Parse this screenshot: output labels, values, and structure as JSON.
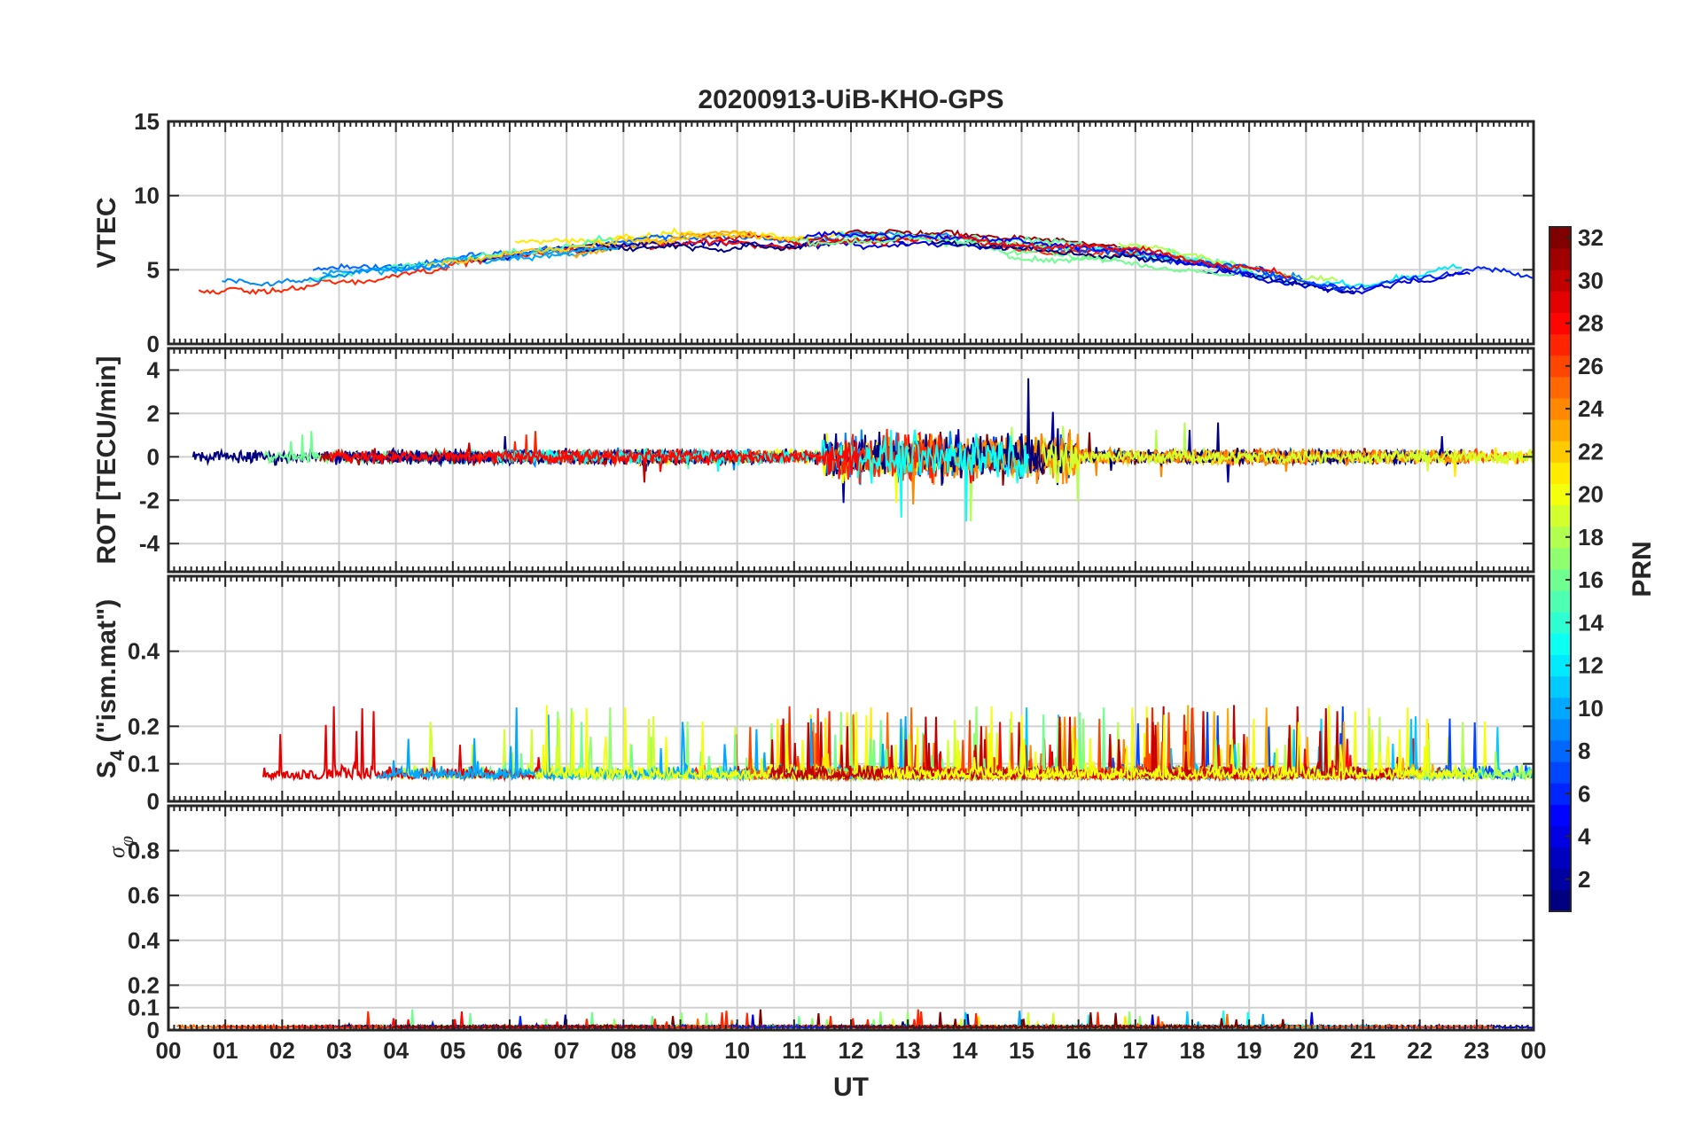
{
  "chart_data": {
    "type": "line",
    "title": "20200913-UiB-KHO-GPS",
    "xlabel": "UT",
    "x_ticks": [
      "00",
      "01",
      "02",
      "03",
      "04",
      "05",
      "06",
      "07",
      "08",
      "09",
      "10",
      "11",
      "12",
      "13",
      "14",
      "15",
      "16",
      "17",
      "18",
      "19",
      "20",
      "21",
      "22",
      "23",
      "00"
    ],
    "xlim": [
      0,
      24
    ],
    "panels": [
      {
        "id": "vtec",
        "ylabel": "VTEC",
        "ylim": [
          0,
          15
        ],
        "yticks": [
          0,
          5,
          10,
          15
        ],
        "ytick_labels": [
          "0",
          "5",
          "10",
          "15"
        ],
        "trend": {
          "hours": [
            0,
            1,
            2,
            3,
            4,
            5,
            6,
            7,
            8,
            9,
            10,
            11,
            12,
            13,
            14,
            15,
            16,
            17,
            18,
            19,
            20,
            21,
            22,
            23,
            24
          ],
          "values": [
            4.2,
            4.0,
            4.0,
            4.6,
            5.0,
            5.6,
            6.0,
            6.4,
            6.8,
            7.0,
            7.2,
            7.0,
            7.2,
            7.2,
            7.0,
            6.6,
            6.4,
            6.2,
            5.6,
            5.0,
            4.2,
            3.8,
            4.6,
            5.0,
            4.6
          ]
        }
      },
      {
        "id": "rot",
        "ylabel": "ROT [TECU/min]",
        "ylim": [
          -5.3,
          5.0
        ],
        "yticks": [
          -4,
          -2,
          0,
          2,
          4
        ],
        "ytick_labels": [
          "-4",
          "-2",
          "0",
          "2",
          "4"
        ]
      },
      {
        "id": "s4",
        "ylabel_main": "S",
        "ylabel_sub": "4",
        "ylabel_rest": " (\"ism.mat\")",
        "ylim": [
          0,
          0.6
        ],
        "yticks": [
          0,
          0.1,
          0.2,
          0.4
        ],
        "ytick_labels": [
          "0",
          "0.1",
          "0.2",
          "0.4"
        ]
      },
      {
        "id": "sigma",
        "ylabel_main": "σ",
        "ylabel_sub": "φ",
        "ylim": [
          0,
          1.0
        ],
        "yticks": [
          0,
          0.1,
          0.2,
          0.4,
          0.6,
          0.8
        ],
        "ytick_labels": [
          "0",
          "0.1",
          "0.2",
          "0.4",
          "0.6",
          "0.8"
        ]
      }
    ],
    "colorbar": {
      "label": "PRN",
      "range": [
        1,
        32
      ],
      "ticks": [
        2,
        4,
        6,
        8,
        10,
        12,
        14,
        16,
        18,
        20,
        22,
        24,
        26,
        28,
        30,
        32
      ],
      "tick_labels": [
        "2",
        "4",
        "6",
        "8",
        "10",
        "12",
        "14",
        "16",
        "18",
        "20",
        "22",
        "24",
        "26",
        "28",
        "30",
        "32"
      ],
      "colormap": "jet"
    },
    "series_note": "Multiple PRN satellite traces, colored by PRN (1-32)"
  },
  "colors": {
    "axis": "#262626",
    "grid": "#d0d0d0",
    "background": "#ffffff"
  }
}
